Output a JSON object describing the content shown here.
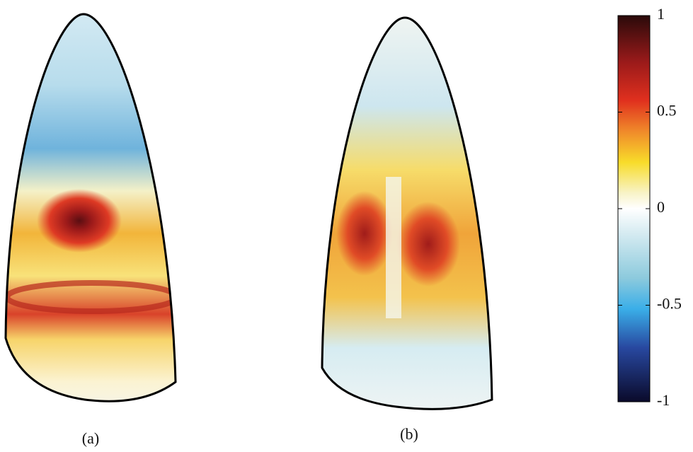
{
  "panels": [
    {
      "label": "(a)"
    },
    {
      "label": "(b)"
    }
  ],
  "colorbar": {
    "lim": [
      -1,
      1
    ],
    "ticks": [
      1,
      0.5,
      0,
      -0.5,
      -1
    ]
  }
}
